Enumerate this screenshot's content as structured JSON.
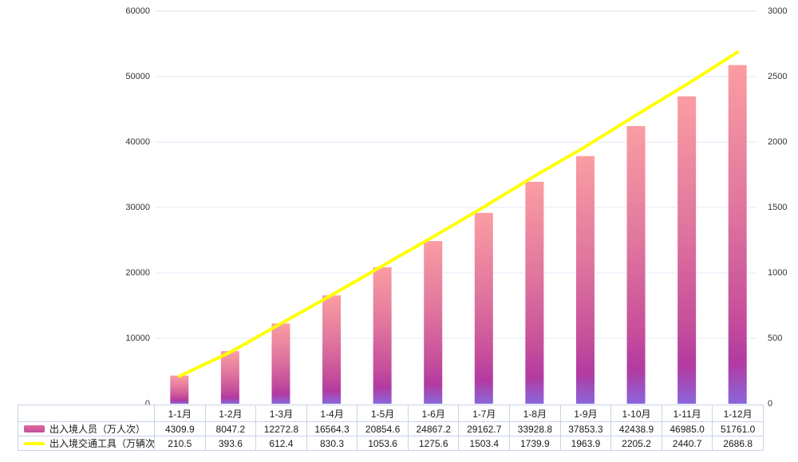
{
  "chart_data": {
    "type": "bar",
    "subtype": "bar-line-combo-dual-axis",
    "title": "",
    "categories": [
      "1-1月",
      "1-2月",
      "1-3月",
      "1-4月",
      "1-5月",
      "1-6月",
      "1-7月",
      "1-8月",
      "1-9月",
      "1-10月",
      "1-11月",
      "1-12月"
    ],
    "series": [
      {
        "name": "出入境人员（万人次）",
        "type": "bar",
        "axis": "left",
        "values": [
          4309.9,
          8047.2,
          12272.8,
          16564.3,
          20854.6,
          24867.2,
          29162.7,
          33928.8,
          37853.3,
          42438.9,
          46985.0,
          51761.0
        ]
      },
      {
        "name": "出入境交通工具（万辆次）",
        "type": "line",
        "axis": "right",
        "values": [
          210.5,
          393.6,
          612.4,
          830.3,
          1053.6,
          1275.6,
          1503.4,
          1739.9,
          1963.9,
          2205.2,
          2440.7,
          2686.8
        ]
      }
    ],
    "left_axis": {
      "min": 0,
      "max": 60000,
      "ticks": [
        0,
        10000,
        20000,
        30000,
        40000,
        50000,
        60000
      ]
    },
    "right_axis": {
      "min": 0,
      "max": 3000,
      "ticks": [
        0,
        500,
        1000,
        1500,
        2000,
        2500,
        3000
      ]
    },
    "grid": "horizontal-only",
    "legend_position": "bottom-table",
    "colors": {
      "bar_gradient_stops": [
        "#fb9da2",
        "#e0769e",
        "#c64f9b",
        "#b23aa1",
        "#8a67dc"
      ],
      "bar_gradient_offsets": [
        0,
        0.42,
        0.74,
        0.88,
        1
      ],
      "line": "#ffff00",
      "grid_line": "#e6eaf8",
      "grid_line_top": "#d9dfe5",
      "table_border": "#c9d3e8",
      "axis_text": "#333333",
      "table_text": "#1a1a1a",
      "swatch_bar_from": "#e2699c",
      "swatch_bar_to": "#c04d99"
    }
  }
}
